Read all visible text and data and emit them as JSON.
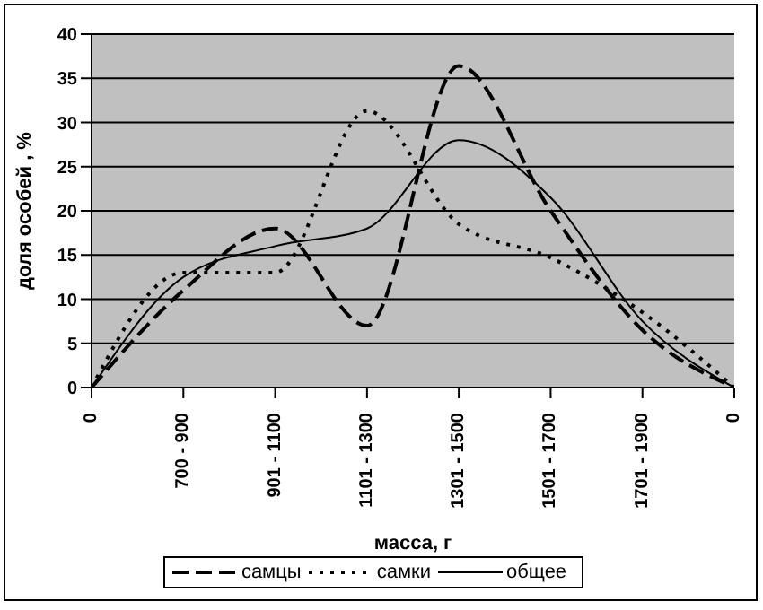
{
  "chart_data": {
    "type": "line",
    "xlabel": "масса, г",
    "ylabel": "доля особей , %",
    "categories": [
      "0",
      "700 - 900",
      "901 - 1100",
      "1101 - 1300",
      "1301 - 1500",
      "1501 - 1700",
      "1701 - 1900",
      "0"
    ],
    "series": [
      {
        "name": "самцы",
        "color": "#000000",
        "line_style": "dashed",
        "values": [
          0,
          11,
          18,
          7,
          36.4,
          20,
          6.5,
          0
        ]
      },
      {
        "name": "самки",
        "color": "#000000",
        "line_style": "dotted",
        "values": [
          0,
          13,
          13,
          31.3,
          18.5,
          14.7,
          8.5,
          0
        ]
      },
      {
        "name": "общее",
        "color": "#000000",
        "line_style": "solid",
        "values": [
          0,
          12.5,
          16,
          18,
          28,
          21.5,
          7.5,
          0
        ]
      }
    ],
    "ylim": [
      0,
      40
    ],
    "yticks": [
      0,
      5,
      10,
      15,
      20,
      25,
      30,
      35,
      40
    ],
    "grid": "y",
    "legend": "bottom",
    "marker": "none"
  }
}
